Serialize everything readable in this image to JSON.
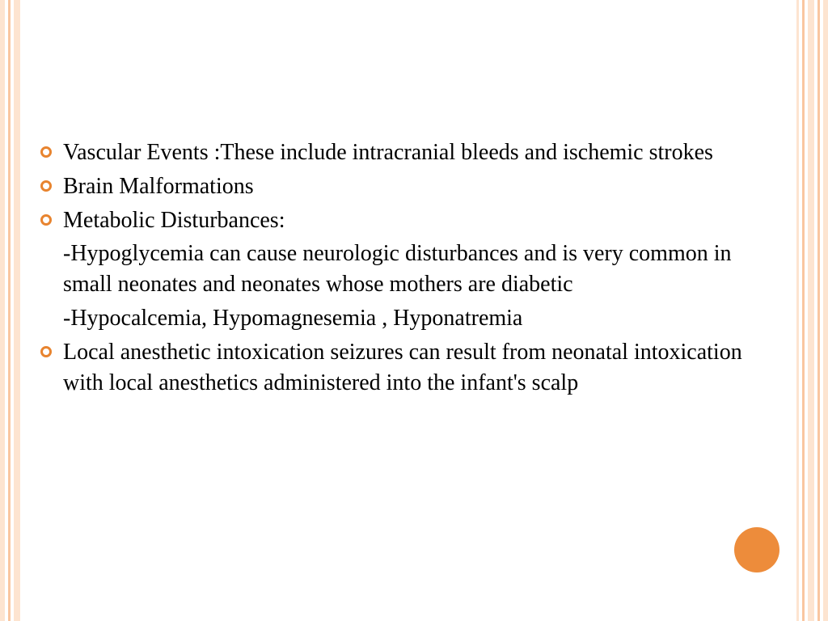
{
  "slide": {
    "bullets": [
      {
        "text": "Vascular Events :These include intracranial bleeds and ischemic strokes",
        "subitems": []
      },
      {
        "text": "Brain Malformations",
        "subitems": []
      },
      {
        "text": "Metabolic Disturbances:",
        "subitems": [
          "-Hypoglycemia can cause neurologic disturbances and is very common in small neonates and neonates whose mothers are diabetic",
          "-Hypocalcemia, Hypomagnesemia , Hyponatremia"
        ]
      },
      {
        "text": "Local anesthetic intoxication seizures can result from neonatal intoxication with local anesthetics administered into the infant's scalp",
        "subitems": []
      }
    ]
  },
  "theme": {
    "accent_color": "#e8842f",
    "circle_color": "#ed8c3b",
    "border_light": "#fde4d0",
    "border_medium": "#f9c6a0",
    "text_color": "#000000",
    "background": "#ffffff",
    "font_family": "Georgia",
    "body_fontsize": 28
  }
}
